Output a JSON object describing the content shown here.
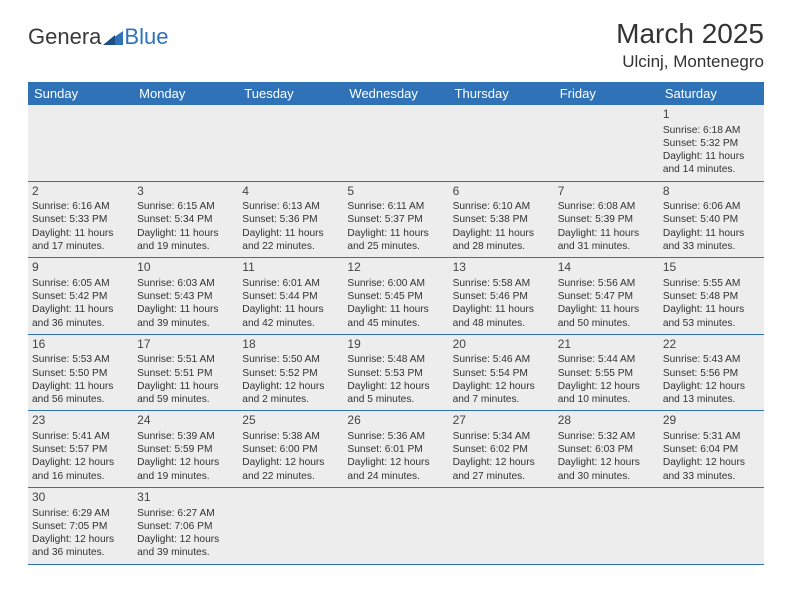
{
  "logo": {
    "part1": "Genera",
    "part2": "Blue"
  },
  "title": "March 2025",
  "location": "Ulcinj, Montenegro",
  "colors": {
    "brand_blue": "#2f72b8",
    "cell_bg": "#ededed",
    "text": "#333333"
  },
  "layout": {
    "columns": 7,
    "rows": 6
  },
  "weekdays": [
    "Sunday",
    "Monday",
    "Tuesday",
    "Wednesday",
    "Thursday",
    "Friday",
    "Saturday"
  ],
  "first_day_index": 6,
  "days": [
    {
      "n": 1,
      "sr": "6:18 AM",
      "ss": "5:32 PM",
      "dl": "11 hours and 14 minutes."
    },
    {
      "n": 2,
      "sr": "6:16 AM",
      "ss": "5:33 PM",
      "dl": "11 hours and 17 minutes."
    },
    {
      "n": 3,
      "sr": "6:15 AM",
      "ss": "5:34 PM",
      "dl": "11 hours and 19 minutes."
    },
    {
      "n": 4,
      "sr": "6:13 AM",
      "ss": "5:36 PM",
      "dl": "11 hours and 22 minutes."
    },
    {
      "n": 5,
      "sr": "6:11 AM",
      "ss": "5:37 PM",
      "dl": "11 hours and 25 minutes."
    },
    {
      "n": 6,
      "sr": "6:10 AM",
      "ss": "5:38 PM",
      "dl": "11 hours and 28 minutes."
    },
    {
      "n": 7,
      "sr": "6:08 AM",
      "ss": "5:39 PM",
      "dl": "11 hours and 31 minutes."
    },
    {
      "n": 8,
      "sr": "6:06 AM",
      "ss": "5:40 PM",
      "dl": "11 hours and 33 minutes."
    },
    {
      "n": 9,
      "sr": "6:05 AM",
      "ss": "5:42 PM",
      "dl": "11 hours and 36 minutes."
    },
    {
      "n": 10,
      "sr": "6:03 AM",
      "ss": "5:43 PM",
      "dl": "11 hours and 39 minutes."
    },
    {
      "n": 11,
      "sr": "6:01 AM",
      "ss": "5:44 PM",
      "dl": "11 hours and 42 minutes."
    },
    {
      "n": 12,
      "sr": "6:00 AM",
      "ss": "5:45 PM",
      "dl": "11 hours and 45 minutes."
    },
    {
      "n": 13,
      "sr": "5:58 AM",
      "ss": "5:46 PM",
      "dl": "11 hours and 48 minutes."
    },
    {
      "n": 14,
      "sr": "5:56 AM",
      "ss": "5:47 PM",
      "dl": "11 hours and 50 minutes."
    },
    {
      "n": 15,
      "sr": "5:55 AM",
      "ss": "5:48 PM",
      "dl": "11 hours and 53 minutes."
    },
    {
      "n": 16,
      "sr": "5:53 AM",
      "ss": "5:50 PM",
      "dl": "11 hours and 56 minutes."
    },
    {
      "n": 17,
      "sr": "5:51 AM",
      "ss": "5:51 PM",
      "dl": "11 hours and 59 minutes."
    },
    {
      "n": 18,
      "sr": "5:50 AM",
      "ss": "5:52 PM",
      "dl": "12 hours and 2 minutes."
    },
    {
      "n": 19,
      "sr": "5:48 AM",
      "ss": "5:53 PM",
      "dl": "12 hours and 5 minutes."
    },
    {
      "n": 20,
      "sr": "5:46 AM",
      "ss": "5:54 PM",
      "dl": "12 hours and 7 minutes."
    },
    {
      "n": 21,
      "sr": "5:44 AM",
      "ss": "5:55 PM",
      "dl": "12 hours and 10 minutes."
    },
    {
      "n": 22,
      "sr": "5:43 AM",
      "ss": "5:56 PM",
      "dl": "12 hours and 13 minutes."
    },
    {
      "n": 23,
      "sr": "5:41 AM",
      "ss": "5:57 PM",
      "dl": "12 hours and 16 minutes."
    },
    {
      "n": 24,
      "sr": "5:39 AM",
      "ss": "5:59 PM",
      "dl": "12 hours and 19 minutes."
    },
    {
      "n": 25,
      "sr": "5:38 AM",
      "ss": "6:00 PM",
      "dl": "12 hours and 22 minutes."
    },
    {
      "n": 26,
      "sr": "5:36 AM",
      "ss": "6:01 PM",
      "dl": "12 hours and 24 minutes."
    },
    {
      "n": 27,
      "sr": "5:34 AM",
      "ss": "6:02 PM",
      "dl": "12 hours and 27 minutes."
    },
    {
      "n": 28,
      "sr": "5:32 AM",
      "ss": "6:03 PM",
      "dl": "12 hours and 30 minutes."
    },
    {
      "n": 29,
      "sr": "5:31 AM",
      "ss": "6:04 PM",
      "dl": "12 hours and 33 minutes."
    },
    {
      "n": 30,
      "sr": "6:29 AM",
      "ss": "7:05 PM",
      "dl": "12 hours and 36 minutes."
    },
    {
      "n": 31,
      "sr": "6:27 AM",
      "ss": "7:06 PM",
      "dl": "12 hours and 39 minutes."
    }
  ],
  "labels": {
    "sunrise": "Sunrise:",
    "sunset": "Sunset:",
    "daylight": "Daylight:"
  }
}
